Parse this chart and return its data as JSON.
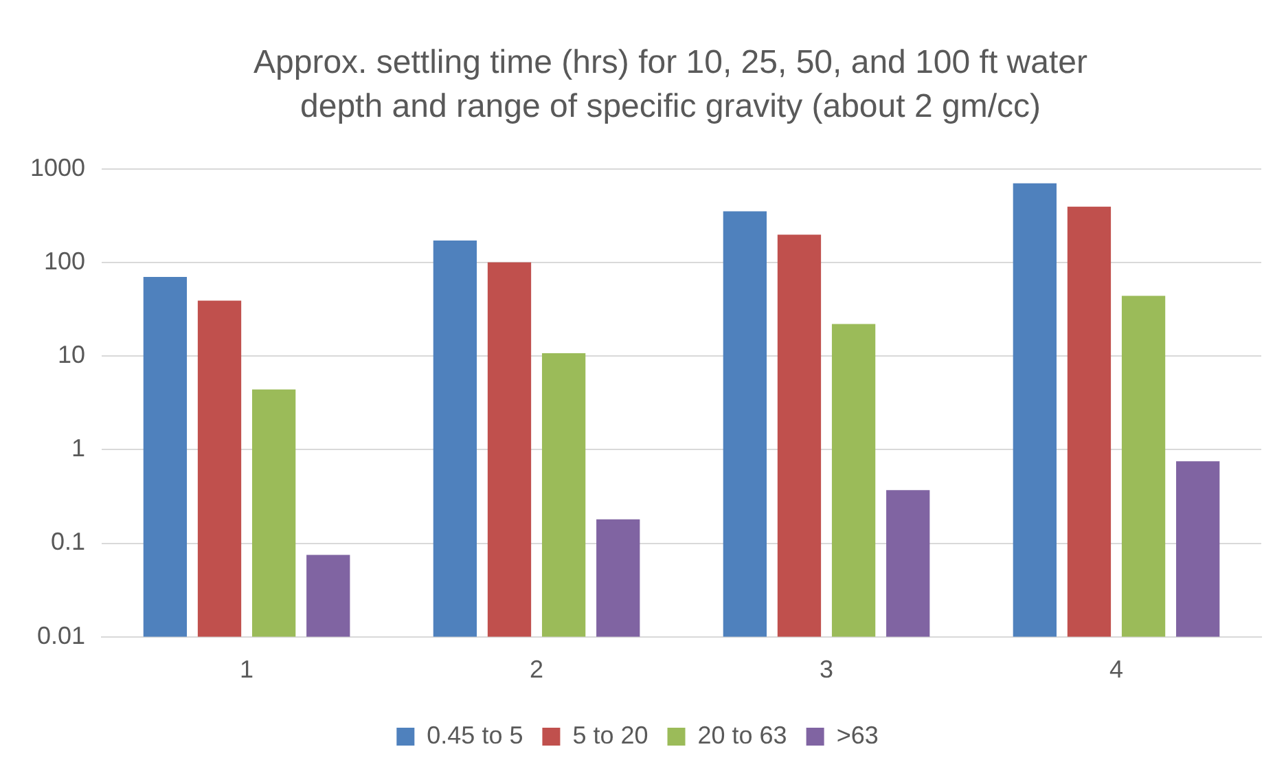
{
  "chart_data": {
    "type": "bar",
    "title": "Approx. settling time (hrs) for 10, 25, 50, and 100 ft water depth and range of specific gravity (about 2 gm/cc)",
    "categories": [
      "1",
      "2",
      "3",
      "4"
    ],
    "series": [
      {
        "name": "0.45 to 5",
        "color": "#4f81bd",
        "values": [
          70,
          171,
          352,
          698
        ]
      },
      {
        "name": "5 to 20",
        "color": "#c0504d",
        "values": [
          39,
          100,
          198,
          393
        ]
      },
      {
        "name": "20 to 63",
        "color": "#9bbb59",
        "values": [
          4.4,
          10.7,
          22,
          44
        ]
      },
      {
        "name": ">63",
        "color": "#8064a2",
        "values": [
          0.075,
          0.18,
          0.37,
          0.75
        ]
      }
    ],
    "log": "y",
    "ylim": [
      0.01,
      1000
    ],
    "yticks": [
      0.01,
      0.1,
      1,
      10,
      100,
      1000
    ],
    "grid": "y",
    "legend": "bottom"
  }
}
